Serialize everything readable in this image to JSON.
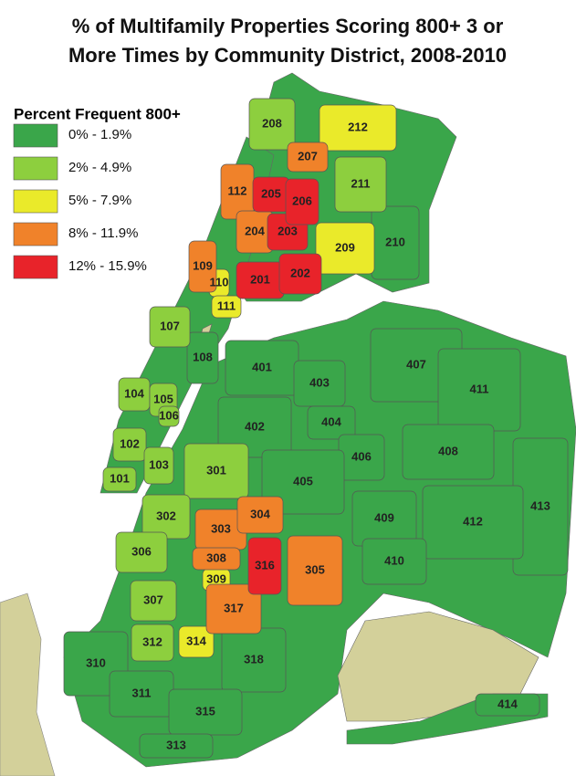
{
  "title_lines": [
    "% of Multifamily Properties Scoring 800+ 3 or",
    "More Times by Community District, 2008-2010"
  ],
  "legend": {
    "title": "Percent Frequent 800+",
    "items": [
      {
        "label": "0% - 1.9%",
        "color": "#3aa64a",
        "districts": [
          "210",
          "108",
          "401",
          "403",
          "407",
          "411",
          "402",
          "404",
          "406",
          "408",
          "405",
          "413",
          "409",
          "412",
          "410",
          "318",
          "310",
          "311",
          "315",
          "414",
          "313"
        ]
      },
      {
        "label": "2% - 4.9%",
        "color": "#8dcf3e",
        "districts": [
          "208",
          "211",
          "107",
          "104",
          "105",
          "106",
          "102",
          "103",
          "101",
          "301",
          "302",
          "306",
          "307",
          "312"
        ]
      },
      {
        "label": "5% - 7.9%",
        "color": "#eaea2a",
        "districts": [
          "212",
          "209",
          "110",
          "111",
          "309",
          "314"
        ]
      },
      {
        "label": "8% - 11.9%",
        "color": "#f0822a",
        "districts": [
          "112",
          "204",
          "207",
          "109",
          "303",
          "304",
          "305",
          "308",
          "317"
        ]
      },
      {
        "label": "12% - 15.9%",
        "color": "#e8232a",
        "districts": [
          "201",
          "202",
          "203",
          "205",
          "206",
          "316"
        ]
      }
    ]
  }
}
